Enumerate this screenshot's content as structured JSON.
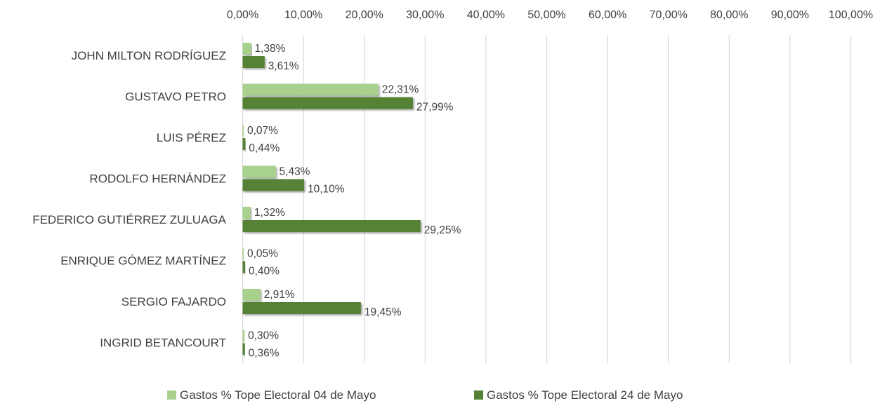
{
  "chart_data": {
    "type": "bar",
    "orientation": "horizontal",
    "categories": [
      "JOHN MILTON RODRÍGUEZ",
      "GUSTAVO PETRO",
      "LUIS PÉREZ",
      "RODOLFO HERNÁNDEZ",
      "FEDERICO GUTIÉRREZ ZULUAGA",
      "ENRIQUE GÓMEZ MARTÍNEZ",
      "SERGIO FAJARDO",
      "INGRID BETANCOURT"
    ],
    "series": [
      {
        "name": "Gastos % Tope Electoral 04 de Mayo",
        "color": "#a9d18e",
        "values": [
          1.38,
          22.31,
          0.07,
          5.43,
          1.32,
          0.05,
          2.91,
          0.3
        ],
        "labels": [
          "1,38%",
          "22,31%",
          "0,07%",
          "5,43%",
          "1,32%",
          "0,05%",
          "2,91%",
          "0,30%"
        ]
      },
      {
        "name": "Gastos % Tope Electoral 24 de Mayo",
        "color": "#548235",
        "values": [
          3.61,
          27.99,
          0.44,
          10.1,
          29.25,
          0.4,
          19.45,
          0.36
        ],
        "labels": [
          "3,61%",
          "27,99%",
          "0,44%",
          "10,10%",
          "29,25%",
          "0,40%",
          "19,45%",
          "0,36%"
        ]
      }
    ],
    "xlim": [
      0,
      100
    ],
    "xticks": [
      "0,00%",
      "10,00%",
      "20,00%",
      "30,00%",
      "40,00%",
      "50,00%",
      "60,00%",
      "70,00%",
      "80,00%",
      "90,00%",
      "100,00%"
    ],
    "axis_position": "top",
    "grid": "vertical",
    "legend": "bottom"
  }
}
